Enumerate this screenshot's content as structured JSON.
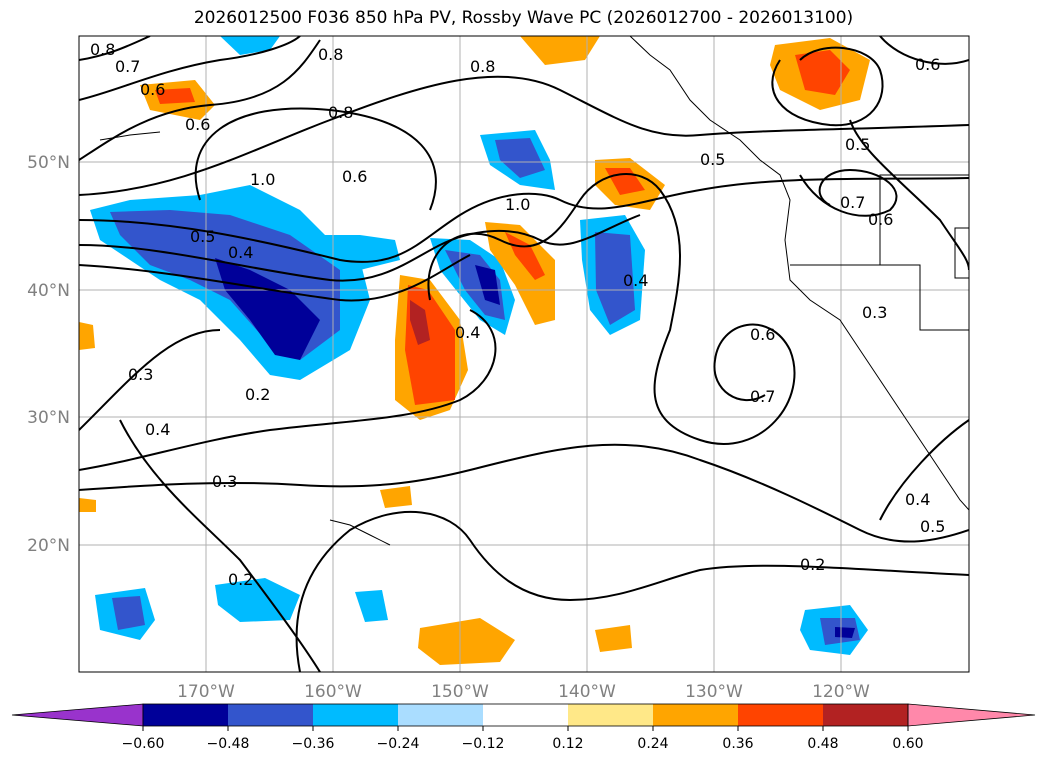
{
  "title": "2026012500 F036 850 hPa PV, Rossby Wave PC (2026012700 - 2026013100)",
  "map": {
    "lat_labels": [
      "50°N",
      "40°N",
      "30°N",
      "20°N"
    ],
    "lon_labels": [
      "170°W",
      "160°W",
      "150°W",
      "140°W",
      "130°W",
      "120°W"
    ],
    "contour_labels": [
      "0.8",
      "0.7",
      "0.6",
      "0.6",
      "0.8",
      "0.8",
      "0.6",
      "0.8",
      "0.5",
      "0.5",
      "1.0",
      "0.6",
      "1.0",
      "0.5",
      "0.4",
      "0.4",
      "0.4",
      "0.6",
      "0.7",
      "0.7",
      "0.6",
      "0.3",
      "0.3",
      "0.2",
      "0.4",
      "0.3",
      "0.2",
      "0.2",
      "0.4",
      "0.5"
    ]
  },
  "colorbar": {
    "colors": [
      "#9933cc",
      "#000099",
      "#3355cc",
      "#00bbff",
      "#aaddff",
      "#ffffff",
      "#ffe888",
      "#ffa500",
      "#ff4400",
      "#b22222",
      "#ff88aa"
    ],
    "ticks": [
      "−0.60",
      "−0.48",
      "−0.36",
      "−0.24",
      "−0.12",
      "0.12",
      "0.24",
      "0.36",
      "0.48",
      "0.60"
    ]
  }
}
